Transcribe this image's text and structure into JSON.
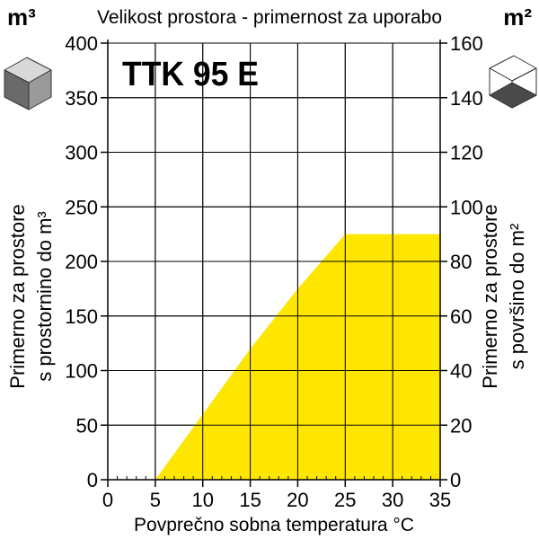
{
  "chart_data": {
    "type": "area",
    "title": "Velikost prostora - primernost za uporabo",
    "model": "TTK 95 E",
    "xlabel": "Povprečno sobna temperatura °C",
    "xlim": [
      0,
      35
    ],
    "x_ticks": [
      0,
      5,
      10,
      15,
      20,
      25,
      30,
      35
    ],
    "left_axis": {
      "unit": "m³",
      "label_line1": "Primerno za prostore",
      "label_line2": "s prostornino do m³",
      "ylim": [
        0,
        400
      ],
      "ticks": [
        0,
        50,
        100,
        150,
        200,
        250,
        300,
        350,
        400
      ]
    },
    "right_axis": {
      "unit": "m²",
      "label_line1": "Primerno za prostore",
      "label_line2": "s površino do m²",
      "ylim": [
        0,
        160
      ],
      "ticks": [
        0,
        20,
        40,
        60,
        80,
        100,
        120,
        140,
        160
      ]
    },
    "series": [
      {
        "x": [
          5,
          10,
          15,
          20,
          25,
          30,
          35
        ],
        "y": [
          0,
          60,
          120,
          175,
          225,
          225,
          225
        ]
      }
    ],
    "fill_color": "#ffe600",
    "grid": true
  }
}
